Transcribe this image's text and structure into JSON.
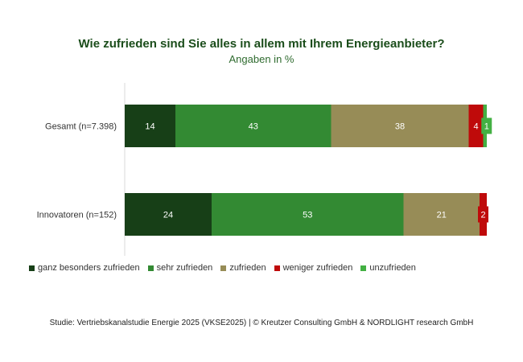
{
  "chart_data": {
    "type": "bar",
    "orientation": "horizontal",
    "stacked": true,
    "title": "Wie zufrieden sind Sie alles in allem mit Ihrem Energieanbieter?",
    "subtitle": "Angaben in %",
    "categories": [
      "Gesamt (n=7.398)",
      "Innovatoren (n=152)"
    ],
    "series": [
      {
        "name": "ganz besonders zufrieden",
        "color": "#173f17",
        "values": [
          14,
          24
        ]
      },
      {
        "name": "sehr zufrieden",
        "color": "#338a33",
        "values": [
          43,
          53
        ]
      },
      {
        "name": "zufrieden",
        "color": "#978c57",
        "values": [
          38,
          21
        ]
      },
      {
        "name": "weniger zufrieden",
        "color": "#bf0a0a",
        "values": [
          4,
          2
        ]
      },
      {
        "name": "unzufrieden",
        "color": "#43b043",
        "values": [
          1,
          0
        ]
      }
    ],
    "xlim": [
      0,
      100
    ],
    "legend": "bottom",
    "source": "Studie: Vertriebskanalstudie Energie 2025 (VKSE2025) | © Kreutzer Consulting GmbH & NORDLIGHT research GmbH"
  }
}
